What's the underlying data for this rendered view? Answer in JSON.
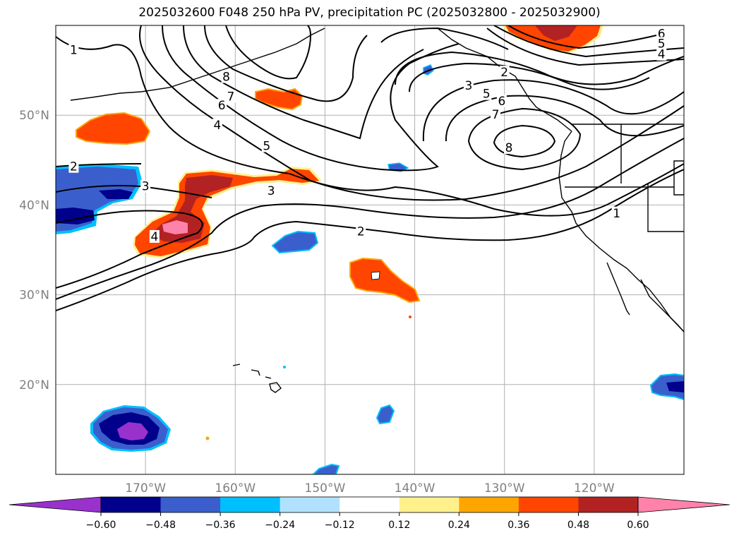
{
  "title": "2025032600 F048 250 hPa PV, precipitation PC (2025032800 - 2025032900)",
  "colors": {
    "land_coast": "#000000",
    "grid": "#b0b0b0",
    "axis_label": "#808080"
  },
  "chart_data": [
    {
      "type": "heatmap",
      "description_kind": "map with filled precipitation principal-component anomalies and 250 hPa PV contours",
      "xlim": [
        -180,
        -110
      ],
      "ylim": [
        10,
        60
      ],
      "x_ticks": [
        {
          "value": -170,
          "label": "170°W"
        },
        {
          "value": -160,
          "label": "160°W"
        },
        {
          "value": -150,
          "label": "150°W"
        },
        {
          "value": -140,
          "label": "140°W"
        },
        {
          "value": -130,
          "label": "130°W"
        },
        {
          "value": -120,
          "label": "120°W"
        }
      ],
      "y_ticks": [
        {
          "value": 50,
          "label": "50°N"
        },
        {
          "value": 40,
          "label": "40°N"
        },
        {
          "value": 30,
          "label": "30°N"
        },
        {
          "value": 20,
          "label": "20°N"
        }
      ],
      "grid": true,
      "pv_contour_labels": [
        {
          "lon": -178,
          "lat": 57.3,
          "text": "1"
        },
        {
          "lon": -178,
          "lat": 44.3,
          "text": "2"
        },
        {
          "lon": -170,
          "lat": 42.1,
          "text": "3"
        },
        {
          "lon": -169,
          "lat": 36.5,
          "text": "4"
        },
        {
          "lon": -162,
          "lat": 48.9,
          "text": "4"
        },
        {
          "lon": -156.5,
          "lat": 46.6,
          "text": "5"
        },
        {
          "lon": -161.5,
          "lat": 51.1,
          "text": "6"
        },
        {
          "lon": -160.5,
          "lat": 52.1,
          "text": "7"
        },
        {
          "lon": -161,
          "lat": 54.3,
          "text": "8"
        },
        {
          "lon": -156,
          "lat": 41.6,
          "text": "3"
        },
        {
          "lon": -146,
          "lat": 37.1,
          "text": "2"
        },
        {
          "lon": -134,
          "lat": 53.3,
          "text": "3"
        },
        {
          "lon": -132,
          "lat": 52.4,
          "text": "5"
        },
        {
          "lon": -130.3,
          "lat": 51.6,
          "text": "6"
        },
        {
          "lon": -130,
          "lat": 54.8,
          "text": "2"
        },
        {
          "lon": -131,
          "lat": 50.1,
          "text": "7"
        },
        {
          "lon": -129.5,
          "lat": 46.4,
          "text": "8"
        },
        {
          "lon": -117.5,
          "lat": 39.1,
          "text": "1"
        },
        {
          "lon": -112.5,
          "lat": 59.1,
          "text": "6"
        },
        {
          "lon": -112.5,
          "lat": 58.0,
          "text": "5"
        },
        {
          "lon": -112.5,
          "lat": 56.8,
          "text": "4"
        }
      ]
    },
    {
      "type": "colorbar",
      "levels": [
        -0.72,
        -0.6,
        -0.48,
        -0.36,
        -0.24,
        -0.12,
        0.12,
        0.24,
        0.36,
        0.48,
        0.6,
        0.72
      ],
      "tick_values": [
        -0.6,
        -0.48,
        -0.36,
        -0.24,
        -0.12,
        0.12,
        0.24,
        0.36,
        0.48,
        0.6
      ],
      "tick_labels": [
        "−0.60",
        "−0.48",
        "−0.36",
        "−0.24",
        "−0.12",
        "0.12",
        "0.24",
        "0.36",
        "0.48",
        "0.60"
      ],
      "colors": [
        "#9932cc",
        "#00008b",
        "#3a5fcd",
        "#00bfff",
        "#b0e2ff",
        "#ffffff",
        "#fff08c",
        "#ffa500",
        "#ff4500",
        "#b22222",
        "#ff82ab"
      ],
      "extend": "both"
    }
  ]
}
